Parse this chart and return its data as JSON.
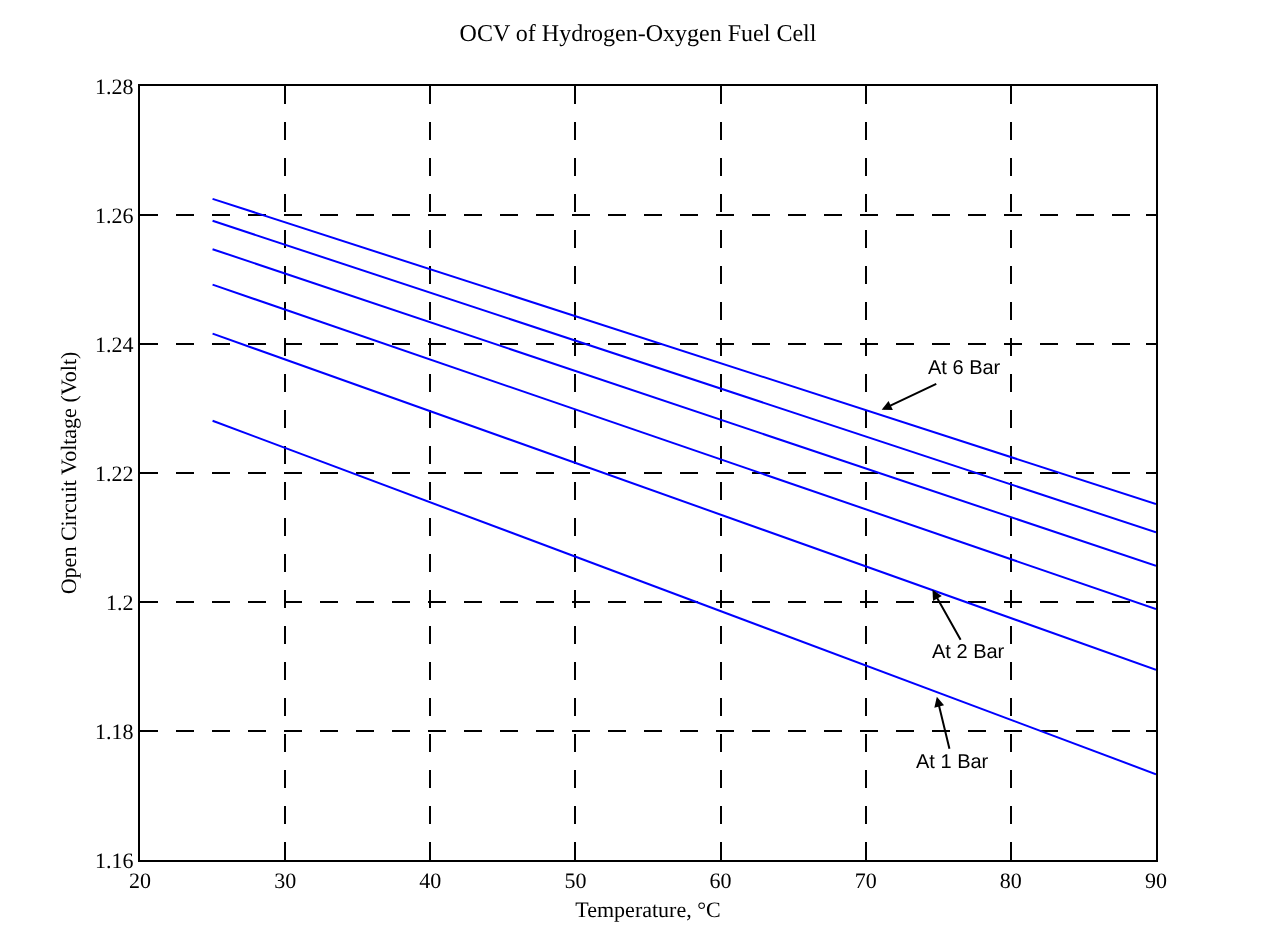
{
  "chart_data": {
    "type": "line",
    "title": "OCV of Hydrogen-Oxygen Fuel Cell",
    "xlabel": "Temperature, °C",
    "ylabel": "Open Circuit Voltage (Volt)",
    "x": [
      25,
      90
    ],
    "series": [
      {
        "color": "#0000ff",
        "values": [
          1.2625,
          1.2152
        ]
      },
      {
        "color": "#0000ff",
        "values": [
          1.2591,
          1.2108
        ]
      },
      {
        "color": "#0000ff",
        "values": [
          1.2547,
          1.2056
        ]
      },
      {
        "color": "#0000ff",
        "values": [
          1.2492,
          1.1989
        ]
      },
      {
        "color": "#0000ff",
        "values": [
          1.2416,
          1.1895
        ]
      },
      {
        "color": "#0000ff",
        "values": [
          1.2281,
          1.1733
        ]
      }
    ],
    "xlim": [
      20,
      90
    ],
    "xticks": [
      20,
      30,
      40,
      50,
      60,
      70,
      80,
      90
    ],
    "ylim": [
      1.16,
      1.28
    ],
    "yticks": [
      1.16,
      1.18,
      1.2,
      1.22,
      1.24,
      1.26,
      1.28
    ],
    "grid": true,
    "line_style": "solid",
    "marker": "none",
    "annotations": [
      {
        "text": "At 6 Bar",
        "x": 71.1,
        "y": 1.2298
      },
      {
        "text": "At 2 Bar",
        "x": 74.6,
        "y": 1.2019
      },
      {
        "text": "At 1 Bar",
        "x": 74.9,
        "y": 1.1853
      }
    ]
  }
}
